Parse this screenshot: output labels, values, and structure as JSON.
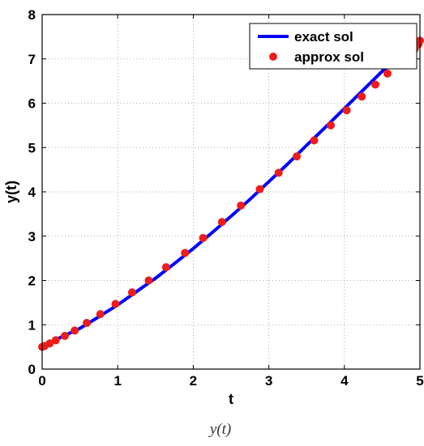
{
  "chart_data": {
    "type": "line",
    "xlabel": "t",
    "ylabel": "y(t)",
    "xlim": [
      0,
      5
    ],
    "ylim": [
      0,
      8
    ],
    "xticks": [
      "0",
      "1",
      "2",
      "3",
      "4",
      "5"
    ],
    "yticks": [
      "0",
      "1",
      "2",
      "3",
      "4",
      "5",
      "6",
      "7",
      "8"
    ],
    "grid": true,
    "legend_position": "top-right",
    "caption": "y(t)",
    "series": [
      {
        "name": "exact sol",
        "style": "line",
        "color": "#0000ff",
        "x": [
          0,
          0.25,
          0.5,
          0.75,
          1,
          1.25,
          1.5,
          1.75,
          2,
          2.25,
          2.5,
          2.75,
          3,
          3.25,
          3.5,
          3.75,
          4,
          4.25,
          4.5,
          4.75,
          5
        ],
        "y": [
          0.5,
          0.72,
          0.92,
          1.18,
          1.45,
          1.75,
          2.05,
          2.38,
          2.72,
          3.08,
          3.45,
          3.83,
          4.23,
          4.63,
          5.05,
          5.46,
          5.88,
          6.3,
          6.72,
          7.07,
          7.42
        ]
      },
      {
        "name": "approx sol",
        "style": "markers",
        "color": "#ee1c1c",
        "x": [
          0,
          0.03,
          0.1,
          0.18,
          0.3,
          0.43,
          0.59,
          0.77,
          0.97,
          1.19,
          1.41,
          1.64,
          1.89,
          2.13,
          2.38,
          2.63,
          2.88,
          3.13,
          3.37,
          3.6,
          3.82,
          4.03,
          4.23,
          4.41,
          4.57,
          4.72,
          4.84,
          4.93,
          4.98,
          5.0
        ],
        "y": [
          0.5,
          0.52,
          0.58,
          0.65,
          0.75,
          0.87,
          1.04,
          1.24,
          1.47,
          1.73,
          2.0,
          2.3,
          2.62,
          2.96,
          3.32,
          3.69,
          4.06,
          4.43,
          4.8,
          5.16,
          5.5,
          5.84,
          6.15,
          6.42,
          6.67,
          6.9,
          7.08,
          7.22,
          7.33,
          7.41
        ]
      }
    ]
  }
}
